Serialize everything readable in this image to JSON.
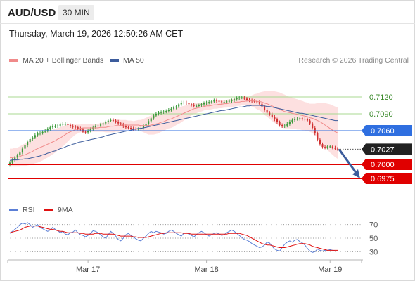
{
  "header": {
    "symbol": "AUD/USD",
    "timeframe": "30 MIN",
    "timestamp": "Thursday, March 19, 2026 12:50:26 AM CET"
  },
  "legend": {
    "ma20": "MA 20 + Bollinger Bands",
    "ma50": "MA 50",
    "credit": "Research © 2026 Trading Central"
  },
  "colors": {
    "candle_up": "#3a9a3a",
    "candle_down": "#d03030",
    "ma20": "#f08a8a",
    "ma50": "#3c5c9c",
    "bollinger_fill": "#fde0e0",
    "resistance_line": "#a8d890",
    "pivot_line": "#2f6fe0",
    "support_line": "#e00000",
    "rsi": "#5b7fd6",
    "rsi_ma": "#e01010"
  },
  "rsi_legend": {
    "rsi": "RSI",
    "ma": "9MA"
  },
  "chart_data": [
    {
      "type": "candlestick",
      "title": "AUD/USD",
      "ylim": [
        0.6955,
        0.7155
      ],
      "x_ticks": [
        "Mar 17",
        "Mar 18",
        "Mar 19"
      ],
      "last_price": 0.7027,
      "levels": [
        {
          "value": 0.712,
          "label": "0.7120",
          "kind": "resistance"
        },
        {
          "value": 0.709,
          "label": "0.7090",
          "kind": "resistance"
        },
        {
          "value": 0.706,
          "label": "0.7060",
          "kind": "pivot"
        },
        {
          "value": 0.7027,
          "label": "0.7027",
          "kind": "last"
        },
        {
          "value": 0.7,
          "label": "0.7000",
          "kind": "support"
        },
        {
          "value": 0.6975,
          "label": "0.6975",
          "kind": "support"
        }
      ],
      "forecast_arrow": {
        "from": 0.7027,
        "to": 0.6975
      },
      "close": [
        0.7003,
        0.7008,
        0.7012,
        0.7016,
        0.7021,
        0.7028,
        0.7034,
        0.704,
        0.7045,
        0.7048,
        0.7052,
        0.7055,
        0.7056,
        0.7058,
        0.706,
        0.7063,
        0.7066,
        0.7068,
        0.7068,
        0.7069,
        0.7071,
        0.7072,
        0.7072,
        0.707,
        0.7068,
        0.7067,
        0.7066,
        0.7064,
        0.7062,
        0.7058,
        0.7057,
        0.706,
        0.7063,
        0.7066,
        0.7068,
        0.7069,
        0.7071,
        0.7073,
        0.7075,
        0.7078,
        0.7079,
        0.7078,
        0.7076,
        0.7073,
        0.7071,
        0.7068,
        0.7066,
        0.7065,
        0.7064,
        0.7063,
        0.7062,
        0.7063,
        0.7065,
        0.7068,
        0.7072,
        0.7077,
        0.7082,
        0.7087,
        0.709,
        0.7092,
        0.7093,
        0.7094,
        0.7095,
        0.7097,
        0.7099,
        0.7101,
        0.7103,
        0.7107,
        0.711,
        0.711,
        0.7109,
        0.7107,
        0.7106,
        0.7104,
        0.7104,
        0.7105,
        0.7107,
        0.7109,
        0.711,
        0.7111,
        0.7112,
        0.7114,
        0.7113,
        0.7112,
        0.7111,
        0.7111,
        0.7112,
        0.7113,
        0.7114,
        0.7116,
        0.7118,
        0.7119,
        0.7119,
        0.7117,
        0.7115,
        0.7114,
        0.7113,
        0.7112,
        0.7111,
        0.7108,
        0.7103,
        0.7097,
        0.7092,
        0.7089,
        0.7085,
        0.708,
        0.7075,
        0.707,
        0.7068,
        0.7069,
        0.7072,
        0.7076,
        0.7079,
        0.7081,
        0.7081,
        0.7082,
        0.7081,
        0.708,
        0.7078,
        0.7073,
        0.7065,
        0.7055,
        0.7044,
        0.7036,
        0.7031,
        0.703,
        0.7032,
        0.7032,
        0.703,
        0.7028,
        0.7027
      ],
      "ma20": [
        0.7012,
        0.7012,
        0.7013,
        0.7013,
        0.7014,
        0.7016,
        0.7017,
        0.7019,
        0.7021,
        0.7023,
        0.7026,
        0.7028,
        0.703,
        0.7032,
        0.7034,
        0.7036,
        0.7038,
        0.704,
        0.7042,
        0.7045,
        0.7047,
        0.705,
        0.7053,
        0.7056,
        0.7058,
        0.706,
        0.7062,
        0.7063,
        0.7064,
        0.7065,
        0.7065,
        0.7065,
        0.7065,
        0.7065,
        0.7065,
        0.7065,
        0.7066,
        0.7066,
        0.7066,
        0.7067,
        0.7068,
        0.7068,
        0.7069,
        0.7069,
        0.7069,
        0.707,
        0.707,
        0.707,
        0.707,
        0.707,
        0.707,
        0.707,
        0.7069,
        0.7069,
        0.7069,
        0.7069,
        0.707,
        0.7071,
        0.7072,
        0.7073,
        0.7075,
        0.7076,
        0.7078,
        0.708,
        0.7081,
        0.7083,
        0.7085,
        0.7087,
        0.7089,
        0.7091,
        0.7093,
        0.7095,
        0.7097,
        0.7099,
        0.71,
        0.7101,
        0.7102,
        0.7103,
        0.7104,
        0.7104,
        0.7105,
        0.7106,
        0.7106,
        0.7107,
        0.7107,
        0.7108,
        0.7108,
        0.7109,
        0.7109,
        0.711,
        0.7111,
        0.7111,
        0.7112,
        0.7112,
        0.7113,
        0.7113,
        0.7113,
        0.7113,
        0.7112,
        0.7112,
        0.7111,
        0.7109,
        0.7108,
        0.7106,
        0.7104,
        0.7102,
        0.71,
        0.7098,
        0.7096,
        0.7094,
        0.7093,
        0.7092,
        0.7091,
        0.709,
        0.7089,
        0.7088,
        0.7087,
        0.7086,
        0.7085,
        0.7083,
        0.7082,
        0.708,
        0.7078,
        0.7076,
        0.7073,
        0.707,
        0.7067,
        0.7064,
        0.7061,
        0.7058,
        0.7056
      ],
      "band_half_width": [
        0.0016,
        0.0016,
        0.0017,
        0.0017,
        0.0018,
        0.0019,
        0.002,
        0.0021,
        0.0022,
        0.0023,
        0.0024,
        0.0025,
        0.0025,
        0.0025,
        0.0024,
        0.0024,
        0.0023,
        0.0022,
        0.0021,
        0.002,
        0.0019,
        0.0018,
        0.0017,
        0.0015,
        0.0013,
        0.0011,
        0.0009,
        0.0008,
        0.0007,
        0.0007,
        0.0007,
        0.0007,
        0.0007,
        0.0007,
        0.0007,
        0.0007,
        0.0008,
        0.0008,
        0.0009,
        0.001,
        0.0011,
        0.0011,
        0.0011,
        0.0011,
        0.001,
        0.0009,
        0.0009,
        0.0008,
        0.0008,
        0.0007,
        0.0008,
        0.0009,
        0.001,
        0.0012,
        0.0014,
        0.0016,
        0.0017,
        0.0018,
        0.0018,
        0.0018,
        0.0017,
        0.0017,
        0.0016,
        0.0016,
        0.0016,
        0.0016,
        0.0015,
        0.0015,
        0.0014,
        0.0013,
        0.0012,
        0.0011,
        0.001,
        0.0009,
        0.0009,
        0.0008,
        0.0008,
        0.0007,
        0.0007,
        0.0007,
        0.0007,
        0.0007,
        0.0007,
        0.0007,
        0.0007,
        0.0007,
        0.0007,
        0.0007,
        0.0007,
        0.0007,
        0.0007,
        0.0007,
        0.0007,
        0.0007,
        0.0007,
        0.0008,
        0.001,
        0.0012,
        0.0014,
        0.0016,
        0.0018,
        0.0021,
        0.0023,
        0.0025,
        0.0027,
        0.0028,
        0.0029,
        0.003,
        0.003,
        0.003,
        0.0029,
        0.0028,
        0.0028,
        0.0027,
        0.0027,
        0.0026,
        0.0026,
        0.0025,
        0.0025,
        0.0025,
        0.0026,
        0.0028,
        0.0031,
        0.0034,
        0.0037,
        0.0039,
        0.0041,
        0.0043,
        0.0044,
        0.0045,
        0.0046
      ],
      "ma50": [
        0.7007,
        0.7008,
        0.7008,
        0.7008,
        0.7009,
        0.7009,
        0.701,
        0.701,
        0.7011,
        0.7012,
        0.7013,
        0.7014,
        0.7015,
        0.7017,
        0.7018,
        0.702,
        0.7021,
        0.7023,
        0.7024,
        0.7026,
        0.7028,
        0.7029,
        0.7031,
        0.7033,
        0.7034,
        0.7036,
        0.7037,
        0.7039,
        0.704,
        0.7041,
        0.7042,
        0.7043,
        0.7044,
        0.7045,
        0.7046,
        0.7047,
        0.7048,
        0.7049,
        0.7051,
        0.7052,
        0.7053,
        0.7054,
        0.7055,
        0.7056,
        0.7057,
        0.7058,
        0.7059,
        0.706,
        0.7061,
        0.7062,
        0.7063,
        0.7064,
        0.7064,
        0.7065,
        0.7066,
        0.7067,
        0.7068,
        0.7069,
        0.707,
        0.7071,
        0.7072,
        0.7073,
        0.7074,
        0.7075,
        0.7076,
        0.7077,
        0.7078,
        0.7079,
        0.708,
        0.7081,
        0.7082,
        0.7083,
        0.7084,
        0.7085,
        0.7086,
        0.7087,
        0.7088,
        0.7089,
        0.709,
        0.7091,
        0.7092,
        0.7093,
        0.7094,
        0.7095,
        0.7096,
        0.7096,
        0.7097,
        0.7098,
        0.7099,
        0.71,
        0.7101,
        0.7102,
        0.7102,
        0.7103,
        0.7104,
        0.7104,
        0.7105,
        0.7105,
        0.7105,
        0.7105,
        0.7104,
        0.7104,
        0.7103,
        0.7103,
        0.7102,
        0.7101,
        0.71,
        0.7099,
        0.7098,
        0.7097,
        0.7096,
        0.7095,
        0.7094,
        0.7093,
        0.7092,
        0.7091,
        0.7091,
        0.709,
        0.7089,
        0.7088,
        0.7087,
        0.7086,
        0.7085,
        0.7084,
        0.7083,
        0.7082,
        0.7081,
        0.708,
        0.7079,
        0.7078,
        0.7078
      ]
    },
    {
      "type": "line",
      "title": "RSI",
      "ylim": [
        20,
        80
      ],
      "y_ticks": [
        70,
        50,
        30
      ],
      "series": [
        {
          "name": "RSI",
          "values": [
            57,
            60,
            63,
            66,
            70,
            72,
            71,
            73,
            70,
            66,
            68,
            70,
            66,
            64,
            62,
            60,
            62,
            66,
            63,
            61,
            58,
            60,
            56,
            55,
            58,
            59,
            62,
            58,
            55,
            54,
            52,
            54,
            57,
            61,
            60,
            58,
            55,
            52,
            50,
            55,
            60,
            57,
            53,
            48,
            46,
            50,
            55,
            57,
            54,
            52,
            49,
            47,
            46,
            50,
            53,
            57,
            60,
            58,
            60,
            59,
            58,
            56,
            57,
            60,
            62,
            60,
            57,
            55,
            53,
            57,
            58,
            56,
            54,
            52,
            55,
            58,
            60,
            58,
            55,
            53,
            55,
            57,
            58,
            56,
            54,
            55,
            58,
            60,
            62,
            60,
            57,
            54,
            51,
            48,
            47,
            45,
            42,
            40,
            38,
            36,
            37,
            40,
            44,
            43,
            38,
            34,
            32,
            31,
            36,
            41,
            44,
            46,
            44,
            47,
            48,
            45,
            43,
            40,
            35,
            31,
            29,
            30,
            34,
            32,
            31,
            32,
            32,
            33,
            32,
            31,
            31
          ]
        },
        {
          "name": "9MA",
          "values": [
            58,
            59,
            60,
            61,
            62,
            64,
            66,
            67,
            68,
            68,
            68,
            68,
            67,
            66,
            65,
            64,
            63,
            63,
            62,
            61,
            60,
            60,
            59,
            58,
            58,
            58,
            58,
            58,
            57,
            57,
            56,
            56,
            56,
            56,
            57,
            57,
            57,
            56,
            56,
            56,
            56,
            56,
            55,
            54,
            53,
            53,
            53,
            53,
            53,
            52,
            52,
            51,
            51,
            51,
            51,
            52,
            53,
            54,
            55,
            56,
            57,
            57,
            58,
            58,
            58,
            58,
            58,
            58,
            58,
            57,
            57,
            57,
            56,
            56,
            56,
            56,
            56,
            56,
            56,
            56,
            56,
            56,
            56,
            56,
            56,
            56,
            56,
            57,
            57,
            57,
            57,
            57,
            56,
            55,
            54,
            52,
            50,
            48,
            46,
            44,
            42,
            41,
            40,
            40,
            39,
            38,
            37,
            36,
            36,
            36,
            37,
            38,
            39,
            40,
            41,
            42,
            42,
            42,
            41,
            40,
            38,
            37,
            36,
            35,
            34,
            33,
            32,
            32,
            32,
            32,
            32
          ]
        }
      ]
    }
  ]
}
